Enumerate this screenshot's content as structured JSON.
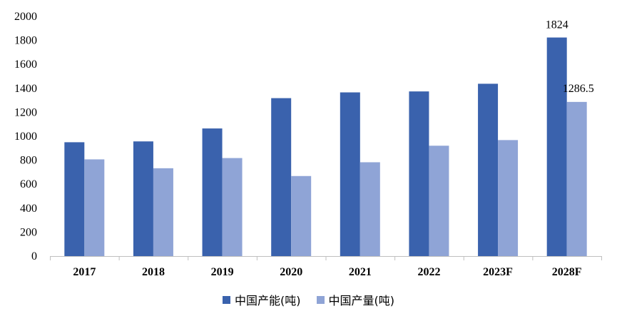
{
  "chart_data": {
    "type": "bar",
    "categories": [
      "2017",
      "2018",
      "2019",
      "2020",
      "2021",
      "2022",
      "2023F",
      "2028F"
    ],
    "series": [
      {
        "name": "中国产能(吨)",
        "values": [
          950,
          957,
          1065,
          1318,
          1366,
          1374,
          1438,
          1824
        ],
        "color": "#3A62AD"
      },
      {
        "name": "中国产量(吨)",
        "values": [
          807,
          733,
          818,
          668,
          783,
          921,
          968,
          1286.5
        ],
        "color": "#8FA4D6"
      }
    ],
    "data_labels": [
      {
        "series": 0,
        "category": "2028F",
        "text": "1824"
      },
      {
        "series": 1,
        "category": "2028F",
        "text": "1286.5"
      }
    ],
    "yticks": [
      "0",
      "200",
      "400",
      "600",
      "800",
      "1000",
      "1200",
      "1400",
      "1600",
      "1800",
      "2000"
    ],
    "ylim": [
      0,
      2000
    ],
    "grid": false,
    "legend_position": "bottom"
  }
}
